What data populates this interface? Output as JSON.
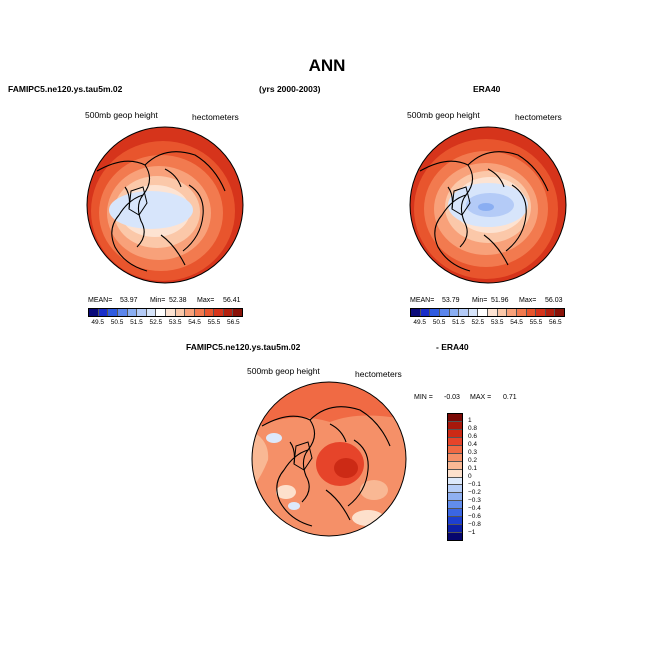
{
  "title": "ANN",
  "header": {
    "left": "FAMIPC5.ne120.ys.tau5m.02",
    "center": "(yrs 2000-2003)",
    "right": "ERA40"
  },
  "diff_header": {
    "left": "FAMIPC5.ne120.ys.tau5m.02",
    "right": "- ERA40"
  },
  "chart_data": [
    {
      "type": "heatmap",
      "projection": "north-polar-stereographic",
      "title": "FAMIPC5.ne120.ys.tau5m.02",
      "variable": "500mb geop height",
      "units": "hectometers",
      "stats": {
        "mean_label": "MEAN=",
        "mean": "53.97",
        "min_label": "Min=",
        "min": "52.38",
        "max_label": "Max=",
        "max": "56.41"
      },
      "levels": [
        "49.5",
        "50.5",
        "51.5",
        "52.5",
        "53.5",
        "54.5",
        "55.5",
        "56.5"
      ],
      "colors": [
        "#0a0a7a",
        "#1a2ec9",
        "#2f5be0",
        "#5c86ec",
        "#8aaef2",
        "#b4cbf7",
        "#d7e5fb",
        "#ffffff",
        "#fde3d2",
        "#fbc8a9",
        "#f8a17a",
        "#f27a4f",
        "#e8552d",
        "#d6341b",
        "#b3200f",
        "#8a1208"
      ]
    },
    {
      "type": "heatmap",
      "projection": "north-polar-stereographic",
      "title": "ERA40",
      "variable": "500mb geop height",
      "units": "hectometers",
      "stats": {
        "mean_label": "MEAN=",
        "mean": "53.79",
        "min_label": "Min=",
        "min": "51.96",
        "max_label": "Max=",
        "max": "56.03"
      },
      "levels": [
        "49.5",
        "50.5",
        "51.5",
        "52.5",
        "53.5",
        "54.5",
        "55.5",
        "56.5"
      ],
      "colors": [
        "#0a0a7a",
        "#1a2ec9",
        "#2f5be0",
        "#5c86ec",
        "#8aaef2",
        "#b4cbf7",
        "#d7e5fb",
        "#ffffff",
        "#fde3d2",
        "#fbc8a9",
        "#f8a17a",
        "#f27a4f",
        "#e8552d",
        "#d6341b",
        "#b3200f",
        "#8a1208"
      ]
    },
    {
      "type": "heatmap",
      "projection": "north-polar-stereographic",
      "title": "FAMIPC5.ne120.ys.tau5m.02 - ERA40",
      "variable": "500mb geop height",
      "units": "hectometers",
      "stats": {
        "min_label": "MIN =",
        "min": "-0.03",
        "max_label": "MAX =",
        "max": "0.71"
      },
      "levels": [
        "1",
        "0.8",
        "0.6",
        "0.4",
        "0.3",
        "0.2",
        "0.1",
        "0",
        "−0.1",
        "−0.2",
        "−0.3",
        "−0.4",
        "−0.6",
        "−0.8",
        "−1"
      ],
      "colors": [
        "#7a0a06",
        "#a8180b",
        "#cc2a15",
        "#e6442a",
        "#f06a44",
        "#f59068",
        "#f9b894",
        "#fde0cc",
        "#dde9fb",
        "#b6cdf7",
        "#8fb0f2",
        "#628ded",
        "#3b66e3",
        "#1d3fd0",
        "#0d1fa6",
        "#06066e"
      ]
    }
  ]
}
